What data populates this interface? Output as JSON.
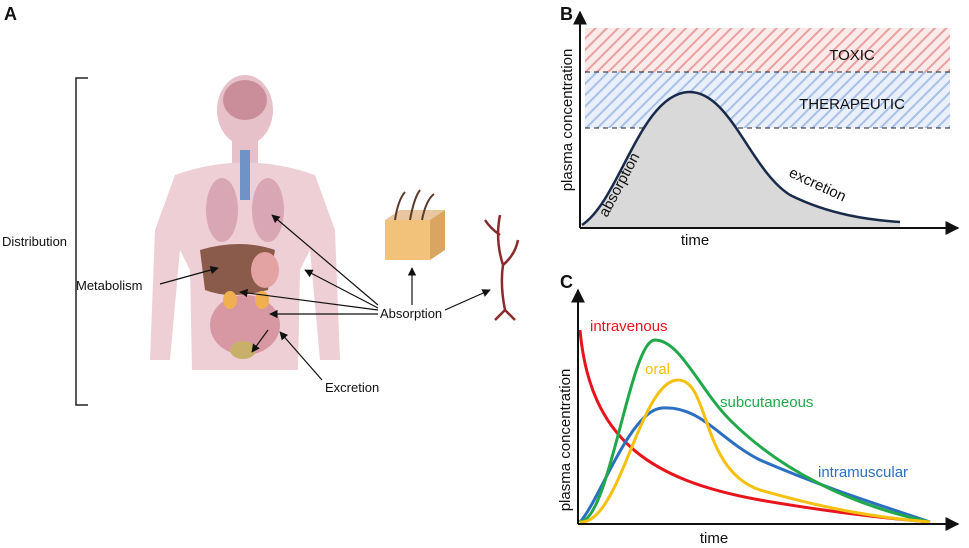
{
  "panel_a": {
    "letter": "A",
    "distribution": "Distribution",
    "metabolism": "Metabolism",
    "absorption": "Absorption",
    "excretion": "Excretion"
  },
  "panel_b": {
    "letter": "B",
    "y_axis": "plasma concentration",
    "x_axis": "time",
    "zones": [
      "TOXIC",
      "THERAPEUTIC"
    ],
    "phases": [
      "absorption",
      "excretion"
    ]
  },
  "panel_c": {
    "letter": "C",
    "y_axis": "plasma concentration",
    "x_axis": "time",
    "routes": [
      "intravenous",
      "oral",
      "subcutaneous",
      "intramuscular"
    ]
  }
}
